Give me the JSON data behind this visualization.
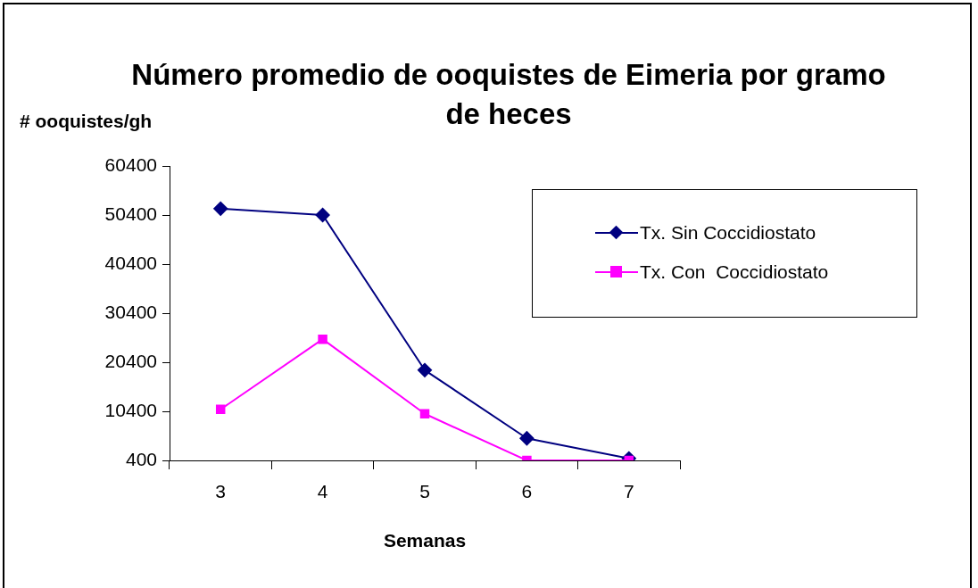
{
  "chart_data": {
    "type": "line",
    "title": "Número promedio de ooquistes de Eimeria por gramo de heces",
    "xlabel": "Semanas",
    "ylabel": "# ooquistes/gh",
    "categories": [
      "3",
      "4",
      "5",
      "6",
      "7"
    ],
    "series": [
      {
        "name": "Tx. Sin Coccidiostato",
        "color": "#000080",
        "marker": "diamond",
        "values": [
          51700,
          50400,
          18800,
          4900,
          800
        ]
      },
      {
        "name": "Tx. Con  Coccidiostato",
        "color": "#ff00ff",
        "marker": "square",
        "values": [
          10800,
          25100,
          9900,
          400,
          400
        ]
      }
    ],
    "ylim": [
      400,
      60400
    ],
    "yticks": [
      400,
      10400,
      20400,
      30400,
      40400,
      50400,
      60400
    ],
    "grid": false,
    "legend": "top right",
    "line_style": "solid"
  }
}
